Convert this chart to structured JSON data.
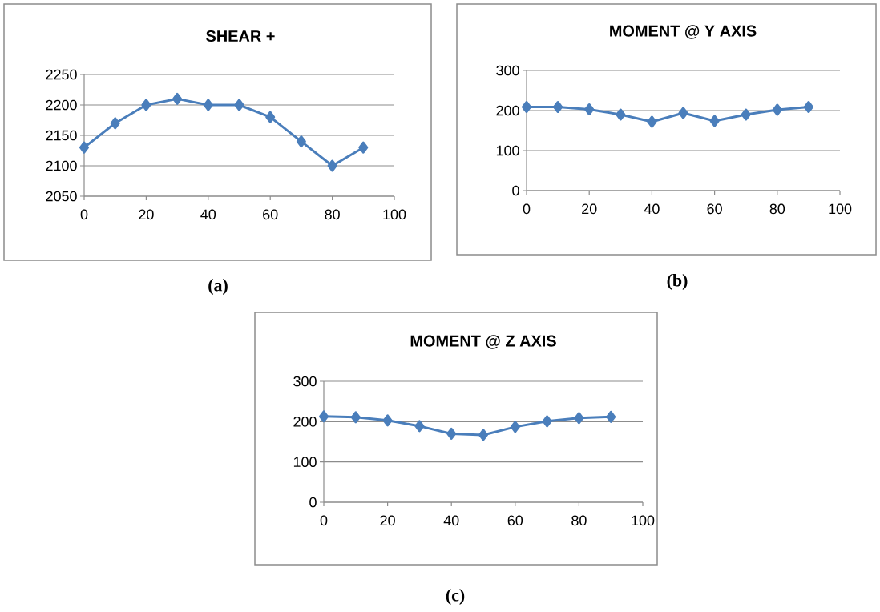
{
  "chart_data": [
    {
      "type": "line",
      "title": "SHEAR +",
      "x": [
        0,
        10,
        20,
        30,
        40,
        50,
        60,
        70,
        80,
        90
      ],
      "values": [
        2130,
        2170,
        2200,
        2210,
        2200,
        2200,
        2180,
        2140,
        2100,
        2130
      ],
      "color": "#4a7ebb",
      "marker": "diamond",
      "grid": "y",
      "xlim": [
        0,
        100
      ],
      "xticks": [
        0,
        20,
        40,
        60,
        80,
        100
      ],
      "ylim": [
        2050,
        2250
      ],
      "yticks": [
        2050,
        2100,
        2150,
        2200,
        2250
      ],
      "annotations": [
        "(a)"
      ]
    },
    {
      "type": "line",
      "title": "MOMENT @ Y AXIS",
      "x": [
        0,
        10,
        20,
        30,
        40,
        50,
        60,
        70,
        80,
        90
      ],
      "values": [
        209,
        209,
        203,
        190,
        172,
        194,
        174,
        190,
        202,
        209
      ],
      "color": "#4a7ebb",
      "marker": "diamond",
      "grid": "y",
      "xlim": [
        0,
        100
      ],
      "xticks": [
        0,
        20,
        40,
        60,
        80,
        100
      ],
      "ylim": [
        0,
        300
      ],
      "yticks": [
        0,
        100,
        200,
        300
      ],
      "annotations": [
        "(b)"
      ]
    },
    {
      "type": "line",
      "title": "MOMENT @ Z AXIS",
      "x": [
        0,
        10,
        20,
        30,
        40,
        50,
        60,
        70,
        80,
        90
      ],
      "values": [
        213,
        211,
        203,
        189,
        170,
        167,
        187,
        201,
        209,
        212
      ],
      "color": "#4a7ebb",
      "marker": "diamond",
      "grid": "y",
      "xlim": [
        0,
        100
      ],
      "xticks": [
        0,
        20,
        40,
        60,
        80,
        100
      ],
      "ylim": [
        0,
        300
      ],
      "yticks": [
        0,
        100,
        200,
        300
      ],
      "annotations": [
        "(c)"
      ]
    }
  ]
}
